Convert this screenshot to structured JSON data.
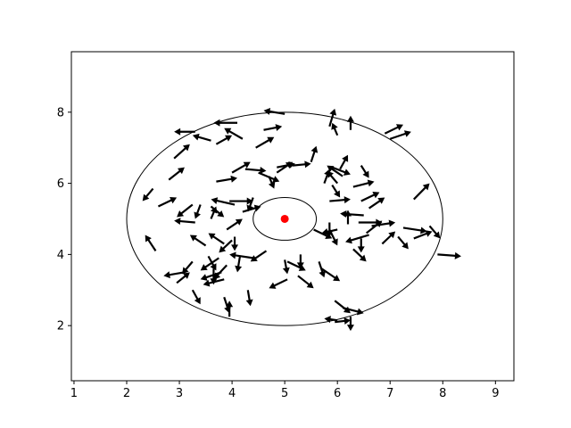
{
  "chart_data": {
    "type": "quiver",
    "title": "",
    "xlabel": "",
    "ylabel": "",
    "xlim": [
      0.95,
      9.35
    ],
    "ylim": [
      0.45,
      9.7
    ],
    "xticks": [
      1,
      2,
      3,
      4,
      5,
      6,
      7,
      8,
      9
    ],
    "yticks": [
      2,
      4,
      6,
      8
    ],
    "grid": false,
    "colors": {
      "arrows": "#000000",
      "center": "#ff0000",
      "ellipses": "#000000"
    },
    "center": {
      "x": 5.0,
      "y": 5.0
    },
    "ellipses": [
      {
        "cx": 5.0,
        "cy": 5.0,
        "rx": 3.0,
        "ry": 3.0
      },
      {
        "cx": 5.0,
        "cy": 5.0,
        "rx": 0.6,
        "ry": 0.6
      }
    ],
    "arrows": [
      {
        "x": 5.0,
        "y": 7.95,
        "dx": -0.4,
        "dy": 0.1
      },
      {
        "x": 5.85,
        "y": 7.6,
        "dx": 0.1,
        "dy": 0.5
      },
      {
        "x": 6.0,
        "y": 7.35,
        "dx": -0.1,
        "dy": 0.35
      },
      {
        "x": 6.25,
        "y": 7.5,
        "dx": 0.0,
        "dy": 0.4
      },
      {
        "x": 4.6,
        "y": 7.5,
        "dx": 0.35,
        "dy": 0.1
      },
      {
        "x": 4.1,
        "y": 7.7,
        "dx": -0.45,
        "dy": 0.0
      },
      {
        "x": 3.7,
        "y": 7.1,
        "dx": 0.3,
        "dy": 0.25
      },
      {
        "x": 3.6,
        "y": 7.2,
        "dx": -0.35,
        "dy": 0.15
      },
      {
        "x": 3.3,
        "y": 7.45,
        "dx": -0.4,
        "dy": 0.0
      },
      {
        "x": 4.2,
        "y": 7.25,
        "dx": -0.35,
        "dy": 0.3
      },
      {
        "x": 4.45,
        "y": 7.0,
        "dx": 0.35,
        "dy": 0.3
      },
      {
        "x": 2.9,
        "y": 6.7,
        "dx": 0.3,
        "dy": 0.4
      },
      {
        "x": 2.8,
        "y": 6.1,
        "dx": 0.3,
        "dy": 0.35
      },
      {
        "x": 2.5,
        "y": 5.85,
        "dx": -0.2,
        "dy": -0.35
      },
      {
        "x": 2.6,
        "y": 5.35,
        "dx": 0.35,
        "dy": 0.25
      },
      {
        "x": 3.25,
        "y": 5.4,
        "dx": -0.3,
        "dy": -0.35
      },
      {
        "x": 3.4,
        "y": 5.4,
        "dx": -0.1,
        "dy": -0.4
      },
      {
        "x": 3.3,
        "y": 4.9,
        "dx": -0.4,
        "dy": 0.05
      },
      {
        "x": 3.6,
        "y": 5.0,
        "dx": 0.1,
        "dy": 0.35
      },
      {
        "x": 3.6,
        "y": 5.35,
        "dx": 0.25,
        "dy": -0.3
      },
      {
        "x": 3.95,
        "y": 5.5,
        "dx": 0.45,
        "dy": 0.0
      },
      {
        "x": 4.05,
        "y": 5.4,
        "dx": -0.45,
        "dy": 0.15
      },
      {
        "x": 4.2,
        "y": 5.2,
        "dx": 0.35,
        "dy": 0.15
      },
      {
        "x": 4.4,
        "y": 5.6,
        "dx": -0.1,
        "dy": -0.4
      },
      {
        "x": 3.7,
        "y": 6.05,
        "dx": 0.4,
        "dy": 0.1
      },
      {
        "x": 4.0,
        "y": 6.3,
        "dx": 0.35,
        "dy": 0.3
      },
      {
        "x": 4.25,
        "y": 6.4,
        "dx": 0.4,
        "dy": -0.05
      },
      {
        "x": 4.5,
        "y": 6.3,
        "dx": 0.4,
        "dy": -0.25
      },
      {
        "x": 4.7,
        "y": 6.2,
        "dx": 0.1,
        "dy": -0.35
      },
      {
        "x": 4.85,
        "y": 6.3,
        "dx": 0.3,
        "dy": 0.3
      },
      {
        "x": 4.85,
        "y": 6.45,
        "dx": 0.35,
        "dy": 0.1
      },
      {
        "x": 5.15,
        "y": 6.5,
        "dx": 0.35,
        "dy": 0.05
      },
      {
        "x": 5.5,
        "y": 6.6,
        "dx": 0.1,
        "dy": 0.45
      },
      {
        "x": 5.9,
        "y": 6.45,
        "dx": 0.35,
        "dy": -0.2
      },
      {
        "x": 6.05,
        "y": 6.4,
        "dx": 0.15,
        "dy": 0.4
      },
      {
        "x": 6.1,
        "y": 6.2,
        "dx": -0.3,
        "dy": 0.3
      },
      {
        "x": 5.75,
        "y": 6.0,
        "dx": 0.1,
        "dy": 0.4
      },
      {
        "x": 6.0,
        "y": 6.0,
        "dx": -0.2,
        "dy": 0.35
      },
      {
        "x": 5.9,
        "y": 5.95,
        "dx": 0.15,
        "dy": -0.35
      },
      {
        "x": 5.85,
        "y": 5.5,
        "dx": 0.4,
        "dy": 0.05
      },
      {
        "x": 6.45,
        "y": 6.5,
        "dx": 0.15,
        "dy": -0.35
      },
      {
        "x": 6.3,
        "y": 5.9,
        "dx": 0.4,
        "dy": 0.15
      },
      {
        "x": 6.45,
        "y": 5.5,
        "dx": 0.35,
        "dy": 0.25
      },
      {
        "x": 6.6,
        "y": 5.3,
        "dx": 0.3,
        "dy": 0.3
      },
      {
        "x": 6.9,
        "y": 7.4,
        "dx": 0.35,
        "dy": 0.25
      },
      {
        "x": 7.0,
        "y": 7.25,
        "dx": 0.4,
        "dy": 0.2
      },
      {
        "x": 7.45,
        "y": 5.55,
        "dx": 0.3,
        "dy": 0.45
      },
      {
        "x": 6.5,
        "y": 5.1,
        "dx": -0.45,
        "dy": 0.05
      },
      {
        "x": 6.2,
        "y": 4.85,
        "dx": 0.0,
        "dy": 0.4
      },
      {
        "x": 6.4,
        "y": 4.9,
        "dx": 0.45,
        "dy": 0.0
      },
      {
        "x": 6.65,
        "y": 4.8,
        "dx": 0.45,
        "dy": 0.1
      },
      {
        "x": 6.55,
        "y": 4.6,
        "dx": 0.3,
        "dy": 0.35
      },
      {
        "x": 6.45,
        "y": 4.45,
        "dx": 0.0,
        "dy": -0.4
      },
      {
        "x": 6.6,
        "y": 4.55,
        "dx": -0.45,
        "dy": -0.2
      },
      {
        "x": 6.85,
        "y": 4.3,
        "dx": 0.25,
        "dy": 0.35
      },
      {
        "x": 7.15,
        "y": 4.5,
        "dx": 0.2,
        "dy": -0.35
      },
      {
        "x": 7.25,
        "y": 4.75,
        "dx": 0.45,
        "dy": -0.1
      },
      {
        "x": 7.45,
        "y": 4.45,
        "dx": 0.35,
        "dy": 0.2
      },
      {
        "x": 7.75,
        "y": 4.8,
        "dx": 0.2,
        "dy": -0.35
      },
      {
        "x": 7.9,
        "y": 4.0,
        "dx": 0.45,
        "dy": -0.05
      },
      {
        "x": 6.3,
        "y": 4.15,
        "dx": 0.25,
        "dy": -0.35
      },
      {
        "x": 5.85,
        "y": 4.9,
        "dx": 0.0,
        "dy": -0.4
      },
      {
        "x": 5.85,
        "y": 4.7,
        "dx": 0.15,
        "dy": -0.45
      },
      {
        "x": 6.0,
        "y": 4.7,
        "dx": -0.3,
        "dy": -0.1
      },
      {
        "x": 5.55,
        "y": 4.7,
        "dx": 0.35,
        "dy": -0.25
      },
      {
        "x": 5.65,
        "y": 3.8,
        "dx": 0.1,
        "dy": -0.45
      },
      {
        "x": 5.7,
        "y": 3.6,
        "dx": 0.35,
        "dy": -0.35
      },
      {
        "x": 5.25,
        "y": 3.4,
        "dx": 0.3,
        "dy": -0.35
      },
      {
        "x": 5.05,
        "y": 3.8,
        "dx": 0.35,
        "dy": -0.25
      },
      {
        "x": 5.0,
        "y": 3.85,
        "dx": 0.05,
        "dy": -0.4
      },
      {
        "x": 5.05,
        "y": 3.3,
        "dx": -0.35,
        "dy": -0.25
      },
      {
        "x": 5.3,
        "y": 4.0,
        "dx": 0.0,
        "dy": -0.4
      },
      {
        "x": 4.65,
        "y": 4.1,
        "dx": -0.3,
        "dy": -0.3
      },
      {
        "x": 4.4,
        "y": 3.9,
        "dx": -0.45,
        "dy": 0.1
      },
      {
        "x": 4.15,
        "y": 3.95,
        "dx": -0.05,
        "dy": -0.45
      },
      {
        "x": 4.0,
        "y": 4.4,
        "dx": -0.25,
        "dy": -0.35
      },
      {
        "x": 3.9,
        "y": 4.7,
        "dx": 0.3,
        "dy": 0.3
      },
      {
        "x": 3.85,
        "y": 4.3,
        "dx": -0.3,
        "dy": 0.3
      },
      {
        "x": 4.05,
        "y": 4.5,
        "dx": 0.0,
        "dy": -0.4
      },
      {
        "x": 3.9,
        "y": 3.7,
        "dx": -0.25,
        "dy": -0.4
      },
      {
        "x": 3.85,
        "y": 3.3,
        "dx": -0.4,
        "dy": -0.15
      },
      {
        "x": 3.75,
        "y": 3.9,
        "dx": -0.35,
        "dy": -0.35
      },
      {
        "x": 3.55,
        "y": 3.95,
        "dx": 0.15,
        "dy": -0.4
      },
      {
        "x": 3.65,
        "y": 3.6,
        "dx": 0.0,
        "dy": -0.45
      },
      {
        "x": 3.8,
        "y": 3.5,
        "dx": -0.4,
        "dy": -0.2
      },
      {
        "x": 3.5,
        "y": 4.25,
        "dx": -0.3,
        "dy": 0.3
      },
      {
        "x": 3.25,
        "y": 3.8,
        "dx": -0.2,
        "dy": -0.35
      },
      {
        "x": 3.1,
        "y": 3.5,
        "dx": -0.4,
        "dy": -0.1
      },
      {
        "x": 2.95,
        "y": 3.2,
        "dx": 0.25,
        "dy": 0.3
      },
      {
        "x": 3.25,
        "y": 3.0,
        "dx": 0.15,
        "dy": -0.4
      },
      {
        "x": 3.95,
        "y": 2.25,
        "dx": 0.0,
        "dy": 0.45
      },
      {
        "x": 3.85,
        "y": 2.8,
        "dx": 0.1,
        "dy": -0.45
      },
      {
        "x": 4.3,
        "y": 3.0,
        "dx": 0.05,
        "dy": -0.45
      },
      {
        "x": 2.55,
        "y": 4.1,
        "dx": -0.2,
        "dy": 0.45
      },
      {
        "x": 6.0,
        "y": 2.15,
        "dx": -0.25,
        "dy": 0.05
      },
      {
        "x": 5.95,
        "y": 2.1,
        "dx": 0.3,
        "dy": 0.05
      },
      {
        "x": 6.1,
        "y": 2.5,
        "dx": 0.4,
        "dy": -0.15
      },
      {
        "x": 5.95,
        "y": 2.7,
        "dx": 0.3,
        "dy": -0.35
      },
      {
        "x": 6.25,
        "y": 2.25,
        "dx": 0.0,
        "dy": -0.4
      }
    ]
  }
}
